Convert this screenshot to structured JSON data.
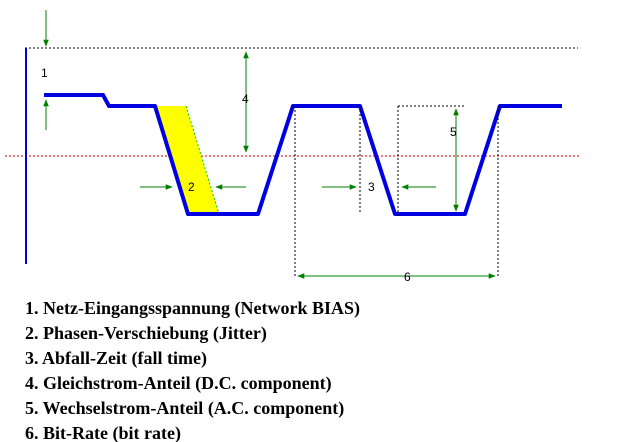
{
  "diagram": {
    "markers": [
      "1",
      "2",
      "3",
      "4",
      "5",
      "6"
    ],
    "colors": {
      "signal": "#0000e0",
      "jitter_fill": "#ffff00",
      "threshold": "#cc0000",
      "guides": "#000000",
      "arrows": "#008000"
    }
  },
  "legend": {
    "items": [
      "1. Netz-Eingangsspannung (Network BIAS)",
      "2. Phasen-Verschiebung (Jitter)",
      "3. Abfall-Zeit (fall time)",
      "4. Gleichstrom-Anteil (D.C. component)",
      "5. Wechselstrom-Anteil (A.C. component)",
      "6. Bit-Rate (bit rate)"
    ]
  }
}
